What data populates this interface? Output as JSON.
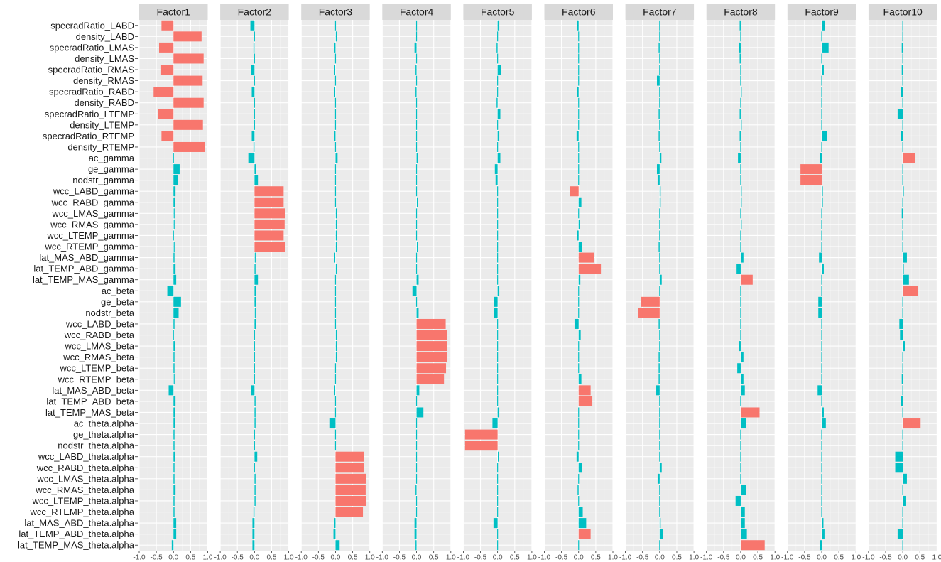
{
  "chart_data": {
    "type": "bar",
    "orientation": "horizontal",
    "panel_background": "#ebebeb",
    "strip_background": "#d9d9d9",
    "grid": true,
    "positive_color": "#f8766d",
    "negative_color": "#00bfc4",
    "xlim": [
      -1,
      1
    ],
    "x_ticks": [
      "-1.0",
      "-0.5",
      "0.0",
      "0.5",
      "1.0"
    ],
    "x_tick_values": [
      -1,
      -0.5,
      0,
      0.5,
      1
    ],
    "variables": [
      "specradRatio_LABD",
      "density_LABD",
      "specradRatio_LMAS",
      "density_LMAS",
      "specradRatio_RMAS",
      "density_RMAS",
      "specradRatio_RABD",
      "density_RABD",
      "specradRatio_LTEMP",
      "density_LTEMP",
      "specradRatio_RTEMP",
      "density_RTEMP",
      "ac_gamma",
      "ge_gamma",
      "nodstr_gamma",
      "wcc_LABD_gamma",
      "wcc_RABD_gamma",
      "wcc_LMAS_gamma",
      "wcc_RMAS_gamma",
      "wcc_LTEMP_gamma",
      "wcc_RTEMP_gamma",
      "lat_MAS_ABD_gamma",
      "lat_TEMP_ABD_gamma",
      "lat_TEMP_MAS_gamma",
      "ac_beta",
      "ge_beta",
      "nodstr_beta",
      "wcc_LABD_beta",
      "wcc_RABD_beta",
      "wcc_LMAS_beta",
      "wcc_RMAS_beta",
      "wcc_LTEMP_beta",
      "wcc_RTEMP_beta",
      "lat_MAS_ABD_beta",
      "lat_TEMP_ABD_beta",
      "lat_TEMP_MAS_beta",
      "ac_theta.alpha",
      "ge_theta.alpha",
      "nodstr_theta.alpha",
      "wcc_LABD_theta.alpha",
      "wcc_RABD_theta.alpha",
      "wcc_LMAS_theta.alpha",
      "wcc_RMAS_theta.alpha",
      "wcc_LTEMP_theta.alpha",
      "wcc_RTEMP_theta.alpha",
      "lat_MAS_ABD_theta.alpha",
      "lat_TEMP_ABD_theta.alpha",
      "lat_TEMP_MAS_theta.alpha"
    ],
    "highlight_threshold": 0.25,
    "factors": [
      {
        "name": "Factor1",
        "values": [
          -0.35,
          0.82,
          -0.42,
          0.88,
          -0.38,
          0.85,
          -0.58,
          0.88,
          -0.45,
          0.86,
          -0.35,
          0.92,
          0.0,
          0.18,
          0.14,
          0.06,
          0.05,
          0.02,
          0.02,
          0.0,
          0.02,
          0.03,
          0.06,
          0.08,
          -0.18,
          0.22,
          0.15,
          0.03,
          0.0,
          0.05,
          0.03,
          0.03,
          0.02,
          -0.14,
          0.06,
          0.05,
          0.05,
          0.03,
          0.03,
          0.05,
          0.03,
          0.03,
          0.06,
          0.03,
          0.03,
          0.08,
          0.08,
          -0.05
        ]
      },
      {
        "name": "Factor2",
        "values": [
          -0.12,
          0.0,
          -0.03,
          0.0,
          -0.1,
          0.0,
          -0.08,
          0.0,
          0.0,
          0.0,
          -0.08,
          -0.03,
          -0.18,
          0.05,
          0.1,
          0.85,
          0.85,
          0.9,
          0.88,
          0.85,
          0.9,
          0.02,
          0.03,
          0.1,
          0.05,
          0.05,
          0.02,
          0.05,
          0.0,
          0.0,
          0.0,
          0.0,
          0.0,
          -0.1,
          0.03,
          0.03,
          0.03,
          0.0,
          0.0,
          0.08,
          0.0,
          0.03,
          0.03,
          0.03,
          -0.03,
          -0.06,
          -0.06,
          -0.06
        ]
      },
      {
        "name": "Factor3",
        "values": [
          0.0,
          0.02,
          -0.03,
          0.0,
          -0.02,
          0.0,
          -0.02,
          0.0,
          0.0,
          0.0,
          -0.03,
          0.0,
          0.06,
          0.0,
          0.0,
          0.0,
          0.0,
          0.02,
          0.02,
          0.02,
          0.02,
          -0.02,
          0.02,
          0.0,
          0.0,
          0.0,
          0.0,
          0.0,
          0.02,
          0.02,
          0.02,
          0.0,
          0.0,
          -0.02,
          0.0,
          0.0,
          -0.18,
          0.0,
          0.0,
          0.82,
          0.82,
          0.9,
          0.88,
          0.9,
          0.8,
          -0.03,
          -0.06,
          0.12
        ]
      },
      {
        "name": "Factor4",
        "values": [
          0.0,
          0.0,
          -0.06,
          0.0,
          -0.03,
          0.0,
          -0.03,
          0.0,
          0.0,
          0.0,
          0.0,
          0.0,
          0.05,
          0.0,
          0.0,
          0.0,
          0.02,
          0.0,
          0.0,
          0.0,
          0.02,
          0.0,
          0.0,
          0.06,
          -0.12,
          0.0,
          0.06,
          0.85,
          0.88,
          0.88,
          0.88,
          0.86,
          0.8,
          0.08,
          0.0,
          0.2,
          0.0,
          0.0,
          0.0,
          0.0,
          0.0,
          0.0,
          -0.03,
          0.0,
          0.0,
          -0.06,
          -0.06,
          -0.03
        ]
      },
      {
        "name": "Factor5",
        "values": [
          0.05,
          0.0,
          -0.03,
          0.0,
          0.1,
          0.0,
          0.0,
          -0.03,
          0.08,
          0.0,
          0.05,
          0.0,
          0.08,
          -0.08,
          -0.06,
          0.0,
          0.0,
          0.0,
          0.0,
          0.0,
          0.0,
          0.0,
          0.0,
          0.0,
          0.05,
          -0.1,
          -0.1,
          0.0,
          0.0,
          0.0,
          0.0,
          0.0,
          0.0,
          0.0,
          0.0,
          0.05,
          -0.15,
          -0.95,
          -0.95,
          0.02,
          0.0,
          0.0,
          0.0,
          0.0,
          0.0,
          -0.12,
          0.0,
          0.0
        ]
      },
      {
        "name": "Factor6",
        "values": [
          -0.05,
          0.0,
          0.0,
          0.0,
          0.0,
          0.0,
          -0.05,
          0.0,
          0.0,
          0.0,
          -0.06,
          0.0,
          0.0,
          0.0,
          0.0,
          -0.25,
          0.08,
          0.0,
          0.03,
          -0.05,
          0.1,
          0.45,
          0.65,
          0.05,
          0.0,
          0.0,
          0.0,
          -0.12,
          0.06,
          0.0,
          0.0,
          0.0,
          0.08,
          0.35,
          0.4,
          0.0,
          0.0,
          0.0,
          0.0,
          -0.06,
          0.1,
          0.0,
          -0.03,
          0.0,
          0.12,
          0.22,
          0.35,
          0.0
        ]
      },
      {
        "name": "Factor7",
        "values": [
          0.0,
          0.0,
          -0.03,
          0.0,
          0.0,
          -0.08,
          0.0,
          0.0,
          -0.03,
          0.0,
          -0.03,
          0.0,
          0.05,
          -0.08,
          -0.06,
          0.03,
          0.03,
          0.0,
          0.0,
          0.0,
          -0.03,
          0.0,
          0.0,
          0.06,
          0.0,
          -0.55,
          -0.62,
          -0.03,
          0.0,
          0.0,
          -0.03,
          -0.03,
          -0.03,
          -0.1,
          0.0,
          0.0,
          0.0,
          0.0,
          0.0,
          0.0,
          0.06,
          -0.06,
          0.0,
          0.0,
          0.0,
          0.03,
          0.1,
          0.0
        ]
      },
      {
        "name": "Factor8",
        "values": [
          -0.03,
          0.0,
          -0.06,
          -0.03,
          0.0,
          0.0,
          0.03,
          0.0,
          -0.03,
          0.03,
          -0.03,
          0.0,
          -0.08,
          0.0,
          0.0,
          0.03,
          0.03,
          0.0,
          0.03,
          0.0,
          0.0,
          0.08,
          -0.12,
          0.35,
          0.0,
          0.0,
          0.0,
          0.0,
          0.0,
          -0.06,
          0.08,
          -0.1,
          0.08,
          0.12,
          0.0,
          0.55,
          0.15,
          0.0,
          0.0,
          0.0,
          0.0,
          0.0,
          0.15,
          -0.15,
          0.12,
          0.12,
          0.18,
          0.7
        ]
      },
      {
        "name": "Factor9",
        "values": [
          0.1,
          0.0,
          0.2,
          0.0,
          0.06,
          0.0,
          0.0,
          0.0,
          0.0,
          0.0,
          0.15,
          0.0,
          -0.05,
          -0.62,
          -0.62,
          0.02,
          0.02,
          0.0,
          0.0,
          0.0,
          0.0,
          -0.08,
          0.06,
          0.0,
          0.0,
          -0.1,
          -0.1,
          0.0,
          0.0,
          0.0,
          0.0,
          0.0,
          0.0,
          -0.12,
          0.0,
          0.06,
          0.12,
          0.0,
          0.0,
          0.0,
          0.0,
          0.0,
          0.0,
          0.0,
          0.0,
          0.05,
          0.08,
          -0.05
        ]
      },
      {
        "name": "Factor10",
        "values": [
          0.0,
          0.0,
          -0.03,
          0.0,
          -0.03,
          0.0,
          -0.06,
          0.0,
          -0.15,
          0.0,
          -0.06,
          0.0,
          0.35,
          0.0,
          0.0,
          0.03,
          0.0,
          -0.03,
          0.0,
          0.0,
          0.0,
          0.12,
          0.03,
          0.18,
          0.45,
          0.0,
          0.0,
          -0.1,
          -0.08,
          0.06,
          0.0,
          0.0,
          -0.03,
          0.0,
          -0.05,
          0.0,
          0.52,
          0.0,
          0.0,
          -0.22,
          -0.22,
          0.12,
          0.0,
          0.1,
          0.0,
          0.0,
          -0.15,
          0.0
        ]
      }
    ]
  }
}
